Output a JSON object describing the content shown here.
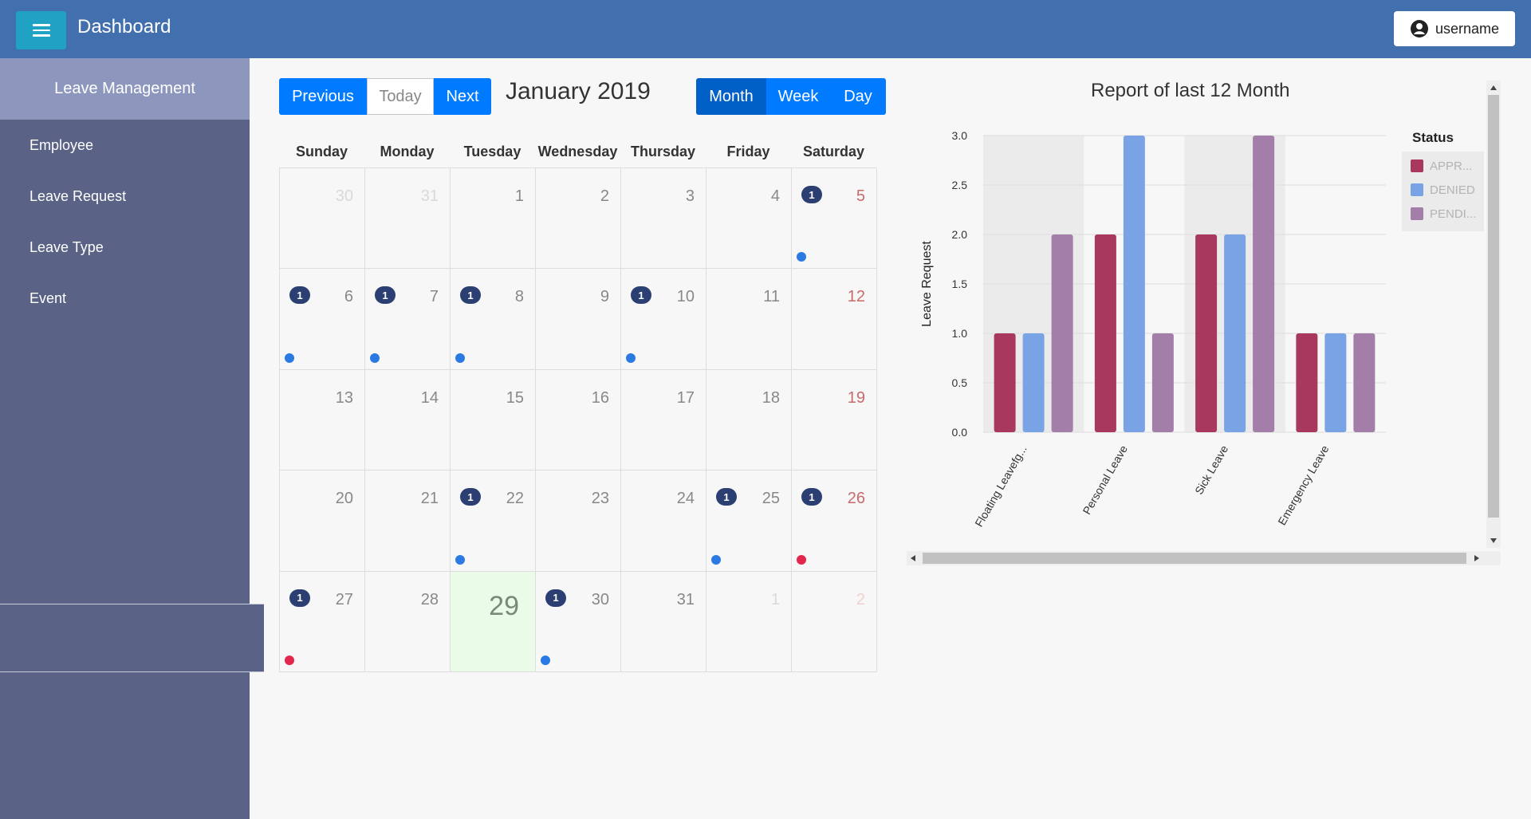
{
  "header": {
    "title": "Dashboard",
    "user": "username"
  },
  "sidebar": {
    "title": "Leave Management",
    "items": [
      {
        "label": "Employee"
      },
      {
        "label": "Leave Request"
      },
      {
        "label": "Leave Type"
      },
      {
        "label": "Event"
      }
    ]
  },
  "calendar": {
    "nav": {
      "previous": "Previous",
      "today": "Today",
      "next": "Next"
    },
    "title": "January 2019",
    "views": {
      "month": "Month",
      "week": "Week",
      "day": "Day"
    },
    "weekdays": [
      "Sunday",
      "Monday",
      "Tuesday",
      "Wednesday",
      "Thursday",
      "Friday",
      "Saturday"
    ],
    "days": [
      {
        "n": "30",
        "other": true
      },
      {
        "n": "31",
        "other": true
      },
      {
        "n": "1"
      },
      {
        "n": "2"
      },
      {
        "n": "3"
      },
      {
        "n": "4"
      },
      {
        "n": "5",
        "badge": "1",
        "dot": "blue"
      },
      {
        "n": "6",
        "badge": "1",
        "dot": "blue"
      },
      {
        "n": "7",
        "badge": "1",
        "dot": "blue"
      },
      {
        "n": "8",
        "badge": "1",
        "dot": "blue"
      },
      {
        "n": "9"
      },
      {
        "n": "10",
        "badge": "1",
        "dot": "blue"
      },
      {
        "n": "11"
      },
      {
        "n": "12"
      },
      {
        "n": "13"
      },
      {
        "n": "14"
      },
      {
        "n": "15"
      },
      {
        "n": "16"
      },
      {
        "n": "17"
      },
      {
        "n": "18"
      },
      {
        "n": "19"
      },
      {
        "n": "20"
      },
      {
        "n": "21"
      },
      {
        "n": "22",
        "badge": "1",
        "dot": "blue"
      },
      {
        "n": "23"
      },
      {
        "n": "24"
      },
      {
        "n": "25",
        "badge": "1",
        "dot": "blue"
      },
      {
        "n": "26",
        "badge": "1",
        "dot": "red"
      },
      {
        "n": "27",
        "badge": "1",
        "dot": "red"
      },
      {
        "n": "28"
      },
      {
        "n": "29",
        "today": true
      },
      {
        "n": "30",
        "badge": "1",
        "dot": "blue"
      },
      {
        "n": "31"
      },
      {
        "n": "1",
        "other": true
      },
      {
        "n": "2",
        "other": true
      }
    ],
    "colors": {
      "blue": "#2b7ae4",
      "red": "#e4264a"
    }
  },
  "chart_data": {
    "type": "bar",
    "title": "Report of last 12 Month",
    "ylabel": "Leave Request",
    "xlabel": "",
    "ylim": [
      0,
      3
    ],
    "yticks": [
      "0.0",
      "0.5",
      "1.0",
      "1.5",
      "2.0",
      "2.5",
      "3.0"
    ],
    "categories": [
      "Floating Leavefg...",
      "Personal Leave",
      "Sick Leave",
      "Emergency Leave"
    ],
    "legend_title": "Status",
    "legend_position": "right",
    "series": [
      {
        "name": "APPR...",
        "color": "#a8385d",
        "values": [
          1,
          2,
          2,
          1
        ]
      },
      {
        "name": "DENIED",
        "color": "#7aa3e5",
        "values": [
          1,
          3,
          2,
          1
        ]
      },
      {
        "name": "PENDI...",
        "color": "#a27ea8",
        "values": [
          2,
          1,
          3,
          1
        ]
      }
    ]
  }
}
